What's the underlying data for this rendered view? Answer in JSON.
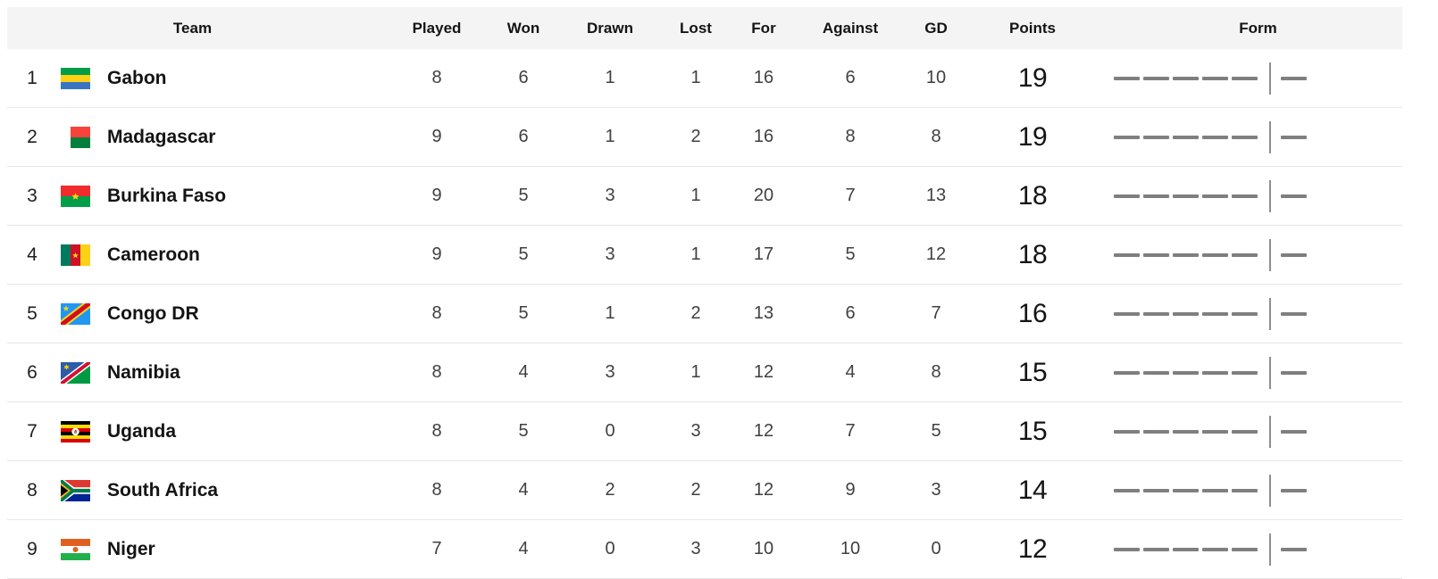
{
  "table": {
    "columns": [
      "Team",
      "Played",
      "Won",
      "Drawn",
      "Lost",
      "For",
      "Against",
      "GD",
      "Points",
      "Form"
    ],
    "rows": [
      {
        "rank": "1",
        "team": "Gabon",
        "flag": "gabon",
        "played": "8",
        "won": "6",
        "drawn": "1",
        "lost": "1",
        "for": "16",
        "against": "6",
        "gd": "10",
        "points": "19"
      },
      {
        "rank": "2",
        "team": "Madagascar",
        "flag": "madagascar",
        "played": "9",
        "won": "6",
        "drawn": "1",
        "lost": "2",
        "for": "16",
        "against": "8",
        "gd": "8",
        "points": "19"
      },
      {
        "rank": "3",
        "team": "Burkina Faso",
        "flag": "burkina-faso",
        "played": "9",
        "won": "5",
        "drawn": "3",
        "lost": "1",
        "for": "20",
        "against": "7",
        "gd": "13",
        "points": "18"
      },
      {
        "rank": "4",
        "team": "Cameroon",
        "flag": "cameroon",
        "played": "9",
        "won": "5",
        "drawn": "3",
        "lost": "1",
        "for": "17",
        "against": "5",
        "gd": "12",
        "points": "18"
      },
      {
        "rank": "5",
        "team": "Congo DR",
        "flag": "congo-dr",
        "played": "8",
        "won": "5",
        "drawn": "1",
        "lost": "2",
        "for": "13",
        "against": "6",
        "gd": "7",
        "points": "16"
      },
      {
        "rank": "6",
        "team": "Namibia",
        "flag": "namibia",
        "played": "8",
        "won": "4",
        "drawn": "3",
        "lost": "1",
        "for": "12",
        "against": "4",
        "gd": "8",
        "points": "15"
      },
      {
        "rank": "7",
        "team": "Uganda",
        "flag": "uganda",
        "played": "8",
        "won": "5",
        "drawn": "0",
        "lost": "3",
        "for": "12",
        "against": "7",
        "gd": "5",
        "points": "15"
      },
      {
        "rank": "8",
        "team": "South Africa",
        "flag": "south-africa",
        "played": "8",
        "won": "4",
        "drawn": "2",
        "lost": "2",
        "for": "12",
        "against": "9",
        "gd": "3",
        "points": "14"
      },
      {
        "rank": "9",
        "team": "Niger",
        "flag": "niger",
        "played": "7",
        "won": "4",
        "drawn": "0",
        "lost": "3",
        "for": "10",
        "against": "10",
        "gd": "0",
        "points": "12"
      }
    ],
    "form": {
      "past_count": 5,
      "next_count": 1,
      "style": "placeholder-dashes"
    }
  },
  "colors": {
    "header_bg": "#f4f4f4",
    "row_bg": "#ffffff",
    "row_border": "#e6e6e6",
    "text_primary": "#141414",
    "text_stats": "#404040",
    "form_dash": "#7f7f7f",
    "form_separator": "#8f8f8f"
  }
}
